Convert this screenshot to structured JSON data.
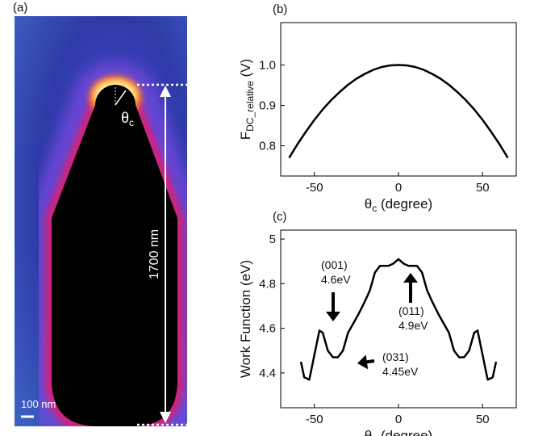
{
  "panel_a": {
    "panel_label": "(a)",
    "angle_label": [
      "θ",
      "c"
    ],
    "length_label": "1700 nm",
    "scale_label": "100 nm"
  },
  "chart_data": [
    {
      "type": "line",
      "panel_label": "(b)",
      "ylabel": [
        "F",
        "DC_relative",
        " (V)"
      ],
      "xlabel": [
        "θ",
        "c",
        " (degree)"
      ],
      "x": [
        -65,
        -60,
        -55,
        -50,
        -45,
        -40,
        -35,
        -30,
        -25,
        -20,
        -15,
        -10,
        -5,
        0,
        5,
        10,
        15,
        20,
        25,
        30,
        35,
        40,
        45,
        50,
        55,
        60,
        65
      ],
      "values": [
        0.77,
        0.804,
        0.835,
        0.864,
        0.89,
        0.913,
        0.933,
        0.951,
        0.966,
        0.978,
        0.988,
        0.995,
        0.999,
        1.0,
        0.999,
        0.995,
        0.988,
        0.978,
        0.966,
        0.951,
        0.933,
        0.913,
        0.89,
        0.864,
        0.835,
        0.804,
        0.77
      ],
      "color": "#000000",
      "xlim": [
        -70,
        70
      ],
      "xticks": [
        -50,
        0,
        50
      ],
      "ylim": [
        0.725,
        1.105
      ],
      "yticks": [
        0.8,
        0.9,
        {
          "value": 1.0,
          "label": "1.0"
        }
      ]
    },
    {
      "type": "line",
      "panel_label": "(c)",
      "ylabel": [
        "Work Function (eV)"
      ],
      "xlabel": [
        "θ",
        "c",
        " (degree)"
      ],
      "x": [
        -58,
        -56,
        -53,
        -50,
        -47,
        -45,
        -42,
        -39,
        -36,
        -33,
        -30,
        -27,
        -24,
        -20,
        -17,
        -14,
        -11,
        -6,
        -3,
        0,
        3,
        6,
        11,
        14,
        17,
        20,
        24,
        27,
        30,
        33,
        36,
        39,
        42,
        45,
        47,
        50,
        53,
        56,
        58
      ],
      "values": [
        4.45,
        4.38,
        4.37,
        4.48,
        4.59,
        4.58,
        4.5,
        4.47,
        4.47,
        4.5,
        4.58,
        4.62,
        4.66,
        4.72,
        4.77,
        4.85,
        4.88,
        4.88,
        4.89,
        4.91,
        4.89,
        4.88,
        4.88,
        4.85,
        4.77,
        4.72,
        4.66,
        4.62,
        4.58,
        4.5,
        4.47,
        4.47,
        4.5,
        4.58,
        4.59,
        4.48,
        4.37,
        4.38,
        4.45
      ],
      "color": "#000000",
      "xlim": [
        -70,
        70
      ],
      "xticks": [
        -50,
        0,
        50
      ],
      "ylim": [
        4.244,
        5.04
      ],
      "yticks": [
        4.4,
        4.6,
        4.8,
        5
      ],
      "annotations": [
        {
          "lines": [
            "(001)",
            "4.6eV"
          ]
        },
        {
          "lines": [
            "(011)",
            "4.9eV"
          ]
        },
        {
          "lines": [
            "(031)",
            "4.45eV"
          ]
        }
      ]
    }
  ]
}
